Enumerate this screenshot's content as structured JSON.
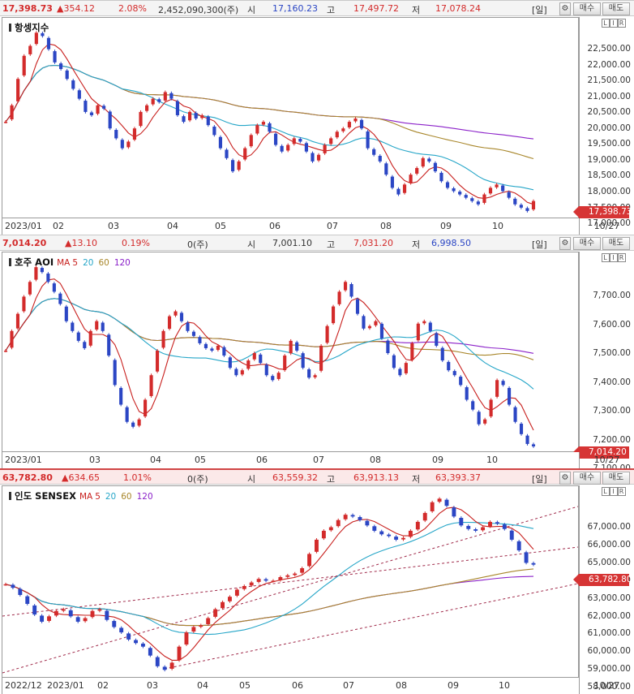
{
  "panels": [
    {
      "header": {
        "price": "17,398.73",
        "change": "▲354.12",
        "pct": "2.08%",
        "volume": "2,452,090,300(주)",
        "open_label": "시",
        "open": "17,160.23",
        "high_label": "고",
        "high": "17,497.72",
        "low_label": "저",
        "low": "17,078.24",
        "period": "[일]",
        "buy": "매수",
        "sell": "매도"
      },
      "title": "항셍지수",
      "legend": null,
      "ticks": [
        "22,500.00",
        "22,000.00",
        "21,500.00",
        "21,000.00",
        "20,500.00",
        "20,000.00",
        "19,500.00",
        "19,000.00",
        "18,500.00",
        "18,000.00",
        "17,500.00",
        "17,000.00"
      ],
      "price_tag": "17,398.73",
      "xticks": [
        "2023/01",
        "02",
        "03",
        "04",
        "05",
        "06",
        "07",
        "08",
        "09",
        "10"
      ],
      "date": "10/27"
    },
    {
      "header": {
        "price": "7,014.20",
        "change": "▲13.10",
        "pct": "0.19%",
        "volume": "0(주)",
        "open_label": "시",
        "open": "7,001.10",
        "high_label": "고",
        "high": "7,031.20",
        "low_label": "저",
        "low": "6,998.50",
        "period": "[일]",
        "buy": "매수",
        "sell": "매도"
      },
      "title": "호주 AOI",
      "legend": {
        "ma": "MA",
        "p5": "5",
        "p20": "20",
        "p60": "60",
        "p120": "120"
      },
      "ticks": [
        "7,700.00",
        "7,600.00",
        "7,500.00",
        "7,400.00",
        "7,300.00",
        "7,200.00",
        "7,100.00"
      ],
      "price_tag": "7,014.20",
      "xticks": [
        "2023/01",
        "03",
        "04",
        "05",
        "06",
        "07",
        "08",
        "09",
        "10"
      ],
      "date": "10/27"
    },
    {
      "header": {
        "price": "63,782.80",
        "change": "▲634.65",
        "pct": "1.01%",
        "volume": "0(주)",
        "open_label": "시",
        "open": "63,559.32",
        "high_label": "고",
        "high": "63,913.13",
        "low_label": "저",
        "low": "63,393.37",
        "period": "[일]",
        "buy": "매수",
        "sell": "매도"
      },
      "title": "인도 SENSEX",
      "legend": {
        "ma": "MA",
        "p5": "5",
        "p20": "20",
        "p60": "60",
        "p120": "120"
      },
      "ticks": [
        "67,000.00",
        "66,000.00",
        "65,000.00",
        "64,000.00",
        "63,000.00",
        "62,000.00",
        "61,000.00",
        "60,000.00",
        "59,000.00",
        "58,000.00"
      ],
      "price_tag": "63,782.80",
      "xticks": [
        "2022/12",
        "2023/01",
        "02",
        "03",
        "04",
        "05",
        "06",
        "07",
        "08",
        "09",
        "10"
      ],
      "date": "10/27"
    }
  ],
  "colors": {
    "up": "#d32b2b",
    "down": "#2b46c4",
    "ma5": "#c8201e",
    "ma20": "#26a6c8",
    "ma60": "#a8862a",
    "ma120": "#8b21c9"
  },
  "chart_data": [
    {
      "type": "line",
      "title": "항셍지수",
      "ylim": [
        16900,
        22950
      ],
      "series": [
        {
          "values": [
            19800,
            20300,
            21100,
            21800,
            22100,
            22500,
            22400,
            22000,
            21600,
            21400,
            21100,
            20800,
            20500,
            20100,
            20000,
            20300,
            20200,
            19600,
            19300,
            19000,
            19200,
            19600,
            20100,
            20300,
            20500,
            20400,
            20700,
            20500,
            20000,
            19800,
            20100,
            19900,
            20000,
            19700,
            19400,
            19000,
            18700,
            18300,
            18600,
            19000,
            19400,
            19700,
            19800,
            19500,
            19100,
            18900,
            19100,
            19300,
            19200,
            18900,
            18600,
            18800,
            19100,
            19300,
            19500,
            19600,
            19800,
            19900,
            19600,
            19000,
            18800,
            18600,
            18200,
            17800,
            17600,
            17900,
            18200,
            18400,
            18700,
            18600,
            18300,
            18000,
            17800,
            17700,
            17600,
            17500,
            17400,
            17300,
            17600,
            17800,
            17900,
            17700,
            17500,
            17300,
            17200,
            17100,
            17400
          ]
        }
      ],
      "xticks": [
        "2023/01",
        "02",
        "03",
        "04",
        "05",
        "06",
        "07",
        "08",
        "09",
        "10"
      ]
    },
    {
      "type": "line",
      "title": "호주 AOI",
      "ylim": [
        6990,
        7800
      ],
      "series": [
        {
          "values": [
            7400,
            7480,
            7550,
            7620,
            7680,
            7740,
            7720,
            7680,
            7640,
            7590,
            7520,
            7480,
            7440,
            7410,
            7480,
            7520,
            7480,
            7380,
            7260,
            7180,
            7110,
            7090,
            7120,
            7200,
            7300,
            7400,
            7480,
            7540,
            7560,
            7520,
            7480,
            7460,
            7430,
            7410,
            7400,
            7420,
            7380,
            7330,
            7300,
            7320,
            7360,
            7390,
            7350,
            7300,
            7280,
            7310,
            7380,
            7440,
            7400,
            7330,
            7290,
            7300,
            7420,
            7500,
            7580,
            7640,
            7680,
            7620,
            7550,
            7490,
            7500,
            7520,
            7450,
            7390,
            7330,
            7300,
            7350,
            7430,
            7510,
            7520,
            7480,
            7420,
            7360,
            7320,
            7300,
            7260,
            7200,
            7160,
            7100,
            7120,
            7200,
            7280,
            7260,
            7180,
            7110,
            7060,
            7020,
            7010
          ]
        }
      ],
      "xticks": [
        "2023/01",
        "03",
        "04",
        "05",
        "06",
        "07",
        "08",
        "09",
        "10"
      ]
    },
    {
      "type": "line",
      "title": "인도 SENSEX",
      "ylim": [
        57400,
        68100
      ],
      "series": [
        {
          "values": [
            62600,
            62400,
            62000,
            61500,
            60900,
            60500,
            60800,
            61100,
            61200,
            60800,
            60500,
            60700,
            61100,
            61200,
            60600,
            60200,
            59900,
            59500,
            59300,
            59100,
            58600,
            58000,
            57800,
            58200,
            59100,
            59900,
            60200,
            60300,
            60700,
            61200,
            61600,
            61900,
            62300,
            62500,
            62700,
            62900,
            62800,
            62800,
            63000,
            63100,
            63200,
            63500,
            64300,
            65100,
            65600,
            65800,
            66200,
            66500,
            66400,
            66200,
            65900,
            65600,
            65400,
            65300,
            65100,
            65200,
            65600,
            66100,
            66600,
            67200,
            67400,
            67000,
            66400,
            65900,
            65700,
            65600,
            65800,
            66100,
            66000,
            65700,
            65100,
            64500,
            63800,
            63700
          ]
        }
      ],
      "xticks": [
        "2022/12",
        "2023/01",
        "02",
        "03",
        "04",
        "05",
        "06",
        "07",
        "08",
        "09",
        "10"
      ]
    }
  ]
}
